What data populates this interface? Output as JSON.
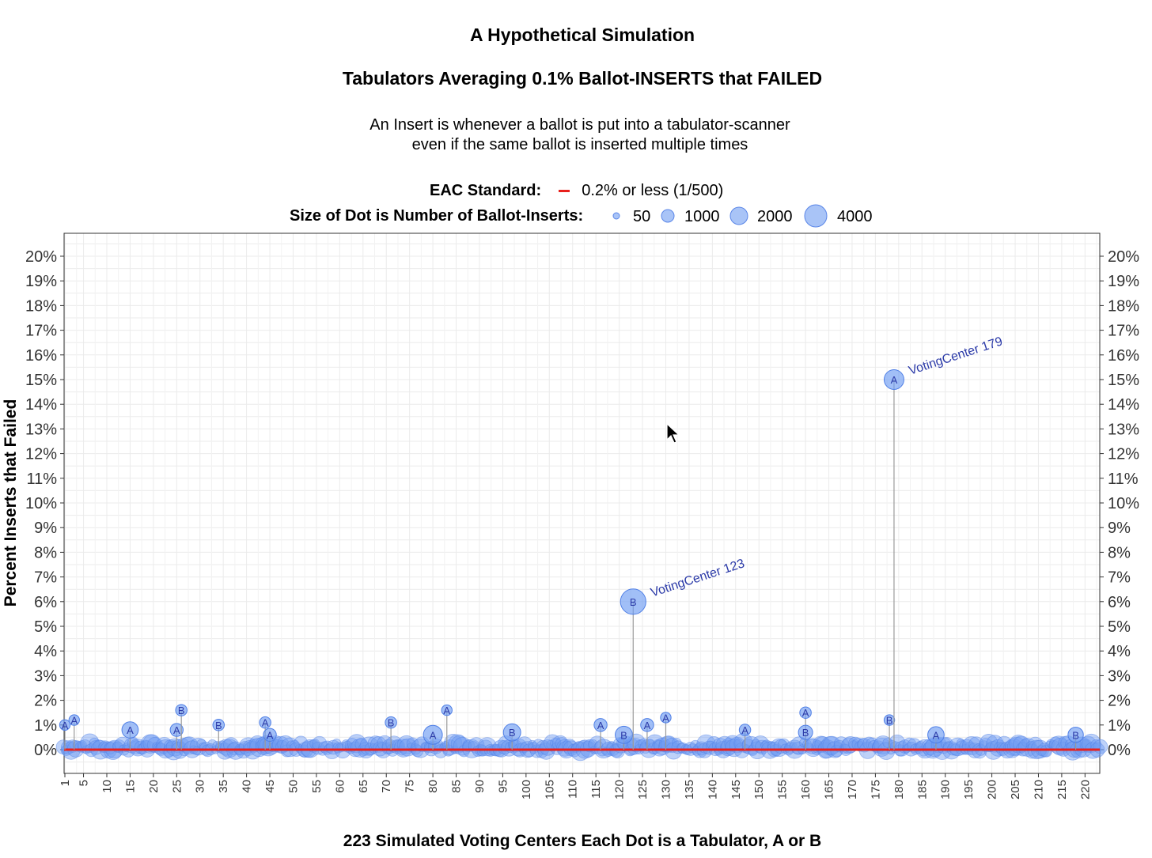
{
  "chart_data": {
    "type": "scatter",
    "title": "A Hypothetical Simulation",
    "subtitle": "Tabulators Averaging 0.1% Ballot-INSERTS that FAILED",
    "description_lines": [
      "An Insert is whenever a ballot is put into a tabulator-scanner",
      "even if the same ballot is inserted multiple times"
    ],
    "legend_standard": {
      "label": "EAC Standard:",
      "text": "0.2% or less (1/500)",
      "color": "#e8201c",
      "value": 0.2
    },
    "legend_size": {
      "label": "Size of Dot is Number of Ballot-Inserts:",
      "values": [
        "50",
        "1000",
        "2000",
        "4000"
      ]
    },
    "ylabel": "Percent Inserts that Failed",
    "xlabel": "223 Simulated Voting Centers     Each Dot is a Tabulator, A or B",
    "ylim": [
      -1,
      21
    ],
    "xlim": [
      1,
      223
    ],
    "y_ticks": [
      0,
      1,
      2,
      3,
      4,
      5,
      6,
      7,
      8,
      9,
      10,
      11,
      12,
      13,
      14,
      15,
      16,
      17,
      18,
      19,
      20
    ],
    "y_tick_labels": [
      "0%",
      "1%",
      "2%",
      "3%",
      "4%",
      "5%",
      "6%",
      "7%",
      "8%",
      "9%",
      "10%",
      "11%",
      "12%",
      "13%",
      "14%",
      "15%",
      "16%",
      "17%",
      "18%",
      "19%",
      "20%"
    ],
    "x_ticks": [
      1,
      5,
      10,
      15,
      20,
      25,
      30,
      35,
      40,
      45,
      50,
      55,
      60,
      65,
      70,
      75,
      80,
      85,
      90,
      95,
      100,
      105,
      110,
      115,
      120,
      125,
      130,
      135,
      140,
      145,
      150,
      155,
      160,
      165,
      170,
      175,
      180,
      185,
      190,
      195,
      200,
      205,
      210,
      215,
      220
    ],
    "x_tick_labels": [
      "1",
      "5",
      "10",
      "15",
      "20",
      "25",
      "30",
      "35",
      "40",
      "45",
      "50",
      "55",
      "60",
      "65",
      "70",
      "75",
      "80",
      "85",
      "90",
      "95",
      "100",
      "105",
      "110",
      "115",
      "120",
      "125",
      "130",
      "135",
      "140",
      "145",
      "150",
      "155",
      "160",
      "165",
      "170",
      "175",
      "180",
      "185",
      "190",
      "195",
      "200",
      "205",
      "210",
      "215",
      "220"
    ],
    "dot_color": "#6f9cf2",
    "label_color": "#2b3aa8",
    "stem_color": "#9a9a9a",
    "grid": true,
    "points": [
      {
        "x": 1,
        "y": 1.0,
        "label": "A",
        "size": 150
      },
      {
        "x": 3,
        "y": 1.2,
        "label": "A",
        "size": 150
      },
      {
        "x": 15,
        "y": 0.8,
        "label": "A",
        "size": 600
      },
      {
        "x": 25,
        "y": 0.8,
        "label": "A",
        "size": 300
      },
      {
        "x": 26,
        "y": 1.6,
        "label": "B",
        "size": 200
      },
      {
        "x": 34,
        "y": 1.0,
        "label": "B",
        "size": 200
      },
      {
        "x": 44,
        "y": 1.1,
        "label": "A",
        "size": 200
      },
      {
        "x": 45,
        "y": 0.6,
        "label": "A",
        "size": 300
      },
      {
        "x": 71,
        "y": 1.1,
        "label": "B",
        "size": 200
      },
      {
        "x": 80,
        "y": 0.6,
        "label": "A",
        "size": 900
      },
      {
        "x": 83,
        "y": 1.6,
        "label": "A",
        "size": 150
      },
      {
        "x": 97,
        "y": 0.7,
        "label": "B",
        "size": 700
      },
      {
        "x": 116,
        "y": 1.0,
        "label": "A",
        "size": 300
      },
      {
        "x": 121,
        "y": 0.6,
        "label": "B",
        "size": 700
      },
      {
        "x": 123,
        "y": 6.0,
        "label": "B",
        "size": 1900,
        "annotation": "VotingCenter 123"
      },
      {
        "x": 126,
        "y": 1.0,
        "label": "A",
        "size": 300
      },
      {
        "x": 130,
        "y": 1.3,
        "label": "A",
        "size": 150
      },
      {
        "x": 147,
        "y": 0.8,
        "label": "A",
        "size": 200
      },
      {
        "x": 160,
        "y": 1.5,
        "label": "A",
        "size": 200
      },
      {
        "x": 160,
        "y": 0.7,
        "label": "B",
        "size": 400
      },
      {
        "x": 178,
        "y": 1.2,
        "label": "B",
        "size": 150
      },
      {
        "x": 179,
        "y": 15.0,
        "label": "A",
        "size": 1000,
        "annotation": "VotingCenter 179"
      },
      {
        "x": 188,
        "y": 0.6,
        "label": "A",
        "size": 600
      },
      {
        "x": 218,
        "y": 0.6,
        "label": "B",
        "size": 500
      }
    ]
  }
}
